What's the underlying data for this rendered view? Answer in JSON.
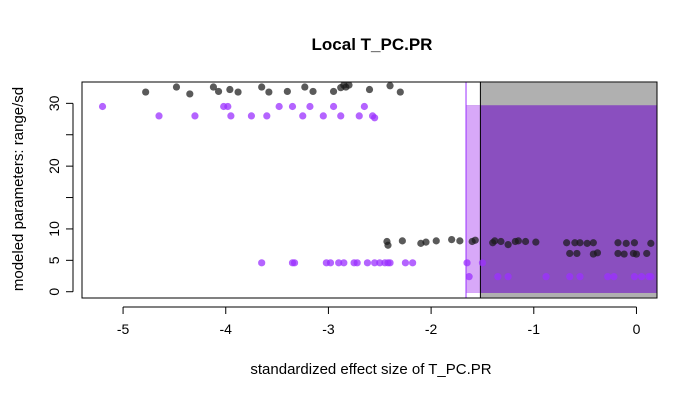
{
  "chart_data": {
    "type": "scatter",
    "title": "Local T_PC.PR",
    "xlabel": "standardized effect size of T_PC.PR",
    "ylabel": "modeled parameters: range/sd",
    "xlim": [
      -5.4,
      0.2
    ],
    "ylim": [
      -1.0,
      33.4
    ],
    "x_ticks": [
      -5,
      -4,
      -3,
      -2,
      -1,
      0
    ],
    "y_ticks": [
      0,
      5,
      10,
      15,
      20,
      25,
      30
    ],
    "y_tick_labels": [
      "0",
      "5",
      "10",
      "",
      "20",
      "",
      "30"
    ],
    "grid": false,
    "colors": {
      "black_points": "#1a1a1a",
      "purple_points": "#9b30ff",
      "gray_band": "#b0b0b0",
      "purple_band": "#8a4fbf",
      "light_purple_band": "#d8a8f8",
      "purple_line": "#9b30ff"
    },
    "bands": [
      {
        "color": "gray",
        "x": [
          -1.52,
          0.2
        ],
        "y": [
          -0.9,
          33.3
        ]
      },
      {
        "color": "purple",
        "x": [
          -1.66,
          0.2
        ],
        "y": [
          -0.2,
          29.7
        ]
      },
      {
        "color": "light-purple",
        "x": [
          -1.66,
          -1.52
        ],
        "y": [
          -0.2,
          29.7
        ]
      }
    ],
    "vlines": [
      {
        "color": "purple",
        "x": -1.66
      },
      {
        "color": "black",
        "x": -1.52
      }
    ],
    "series": [
      {
        "color": "black",
        "points": [
          [
            -4.78,
            31.8
          ],
          [
            -4.48,
            32.6
          ],
          [
            -4.35,
            31.5
          ],
          [
            -4.12,
            32.6
          ],
          [
            -4.07,
            31.9
          ],
          [
            -3.96,
            32.2
          ],
          [
            -3.88,
            31.8
          ],
          [
            -3.65,
            32.6
          ],
          [
            -3.58,
            31.8
          ],
          [
            -3.4,
            31.9
          ],
          [
            -3.23,
            32.6
          ],
          [
            -3.15,
            31.9
          ],
          [
            -2.95,
            31.9
          ],
          [
            -2.88,
            32.5
          ],
          [
            -2.85,
            32.9
          ],
          [
            -2.83,
            32.6
          ],
          [
            -2.8,
            32.9
          ],
          [
            -2.6,
            32.2
          ],
          [
            -2.4,
            32.8
          ],
          [
            -2.3,
            31.8
          ],
          [
            -2.43,
            8.0
          ],
          [
            -2.42,
            7.4
          ],
          [
            -2.28,
            8.1
          ],
          [
            -2.1,
            7.7
          ],
          [
            -2.05,
            7.9
          ],
          [
            -1.95,
            8.1
          ],
          [
            -1.8,
            8.3
          ],
          [
            -1.72,
            8.1
          ],
          [
            -1.6,
            8.0
          ],
          [
            -1.57,
            8.2
          ],
          [
            -1.4,
            7.8
          ],
          [
            -1.38,
            8.1
          ],
          [
            -1.32,
            8.0
          ],
          [
            -1.25,
            7.5
          ],
          [
            -1.18,
            8.0
          ],
          [
            -1.15,
            8.1
          ],
          [
            -1.08,
            8.0
          ],
          [
            -0.98,
            7.9
          ],
          [
            -0.68,
            7.8
          ],
          [
            -0.6,
            7.8
          ],
          [
            -0.55,
            7.8
          ],
          [
            -0.48,
            7.7
          ],
          [
            -0.42,
            7.8
          ],
          [
            -0.18,
            7.8
          ],
          [
            -0.1,
            7.7
          ],
          [
            -0.02,
            7.8
          ],
          [
            0.14,
            7.7
          ],
          [
            -0.65,
            6.1
          ],
          [
            -0.58,
            6.1
          ],
          [
            -0.42,
            6.0
          ],
          [
            -0.38,
            6.2
          ],
          [
            -0.18,
            6.1
          ],
          [
            -0.12,
            6.0
          ],
          [
            -0.03,
            6.1
          ],
          [
            0.0,
            6.0
          ],
          [
            0.1,
            6.1
          ]
        ]
      },
      {
        "color": "purple",
        "points": [
          [
            -5.2,
            29.5
          ],
          [
            -4.65,
            28.0
          ],
          [
            -4.3,
            28.0
          ],
          [
            -4.02,
            29.5
          ],
          [
            -3.98,
            29.5
          ],
          [
            -3.95,
            28.0
          ],
          [
            -3.75,
            28.0
          ],
          [
            -3.6,
            28.0
          ],
          [
            -3.48,
            29.5
          ],
          [
            -3.35,
            29.5
          ],
          [
            -3.25,
            28.0
          ],
          [
            -3.18,
            29.5
          ],
          [
            -3.05,
            28.0
          ],
          [
            -2.95,
            29.5
          ],
          [
            -2.88,
            28.0
          ],
          [
            -2.7,
            28.0
          ],
          [
            -2.65,
            29.5
          ],
          [
            -2.57,
            28.0
          ],
          [
            -2.55,
            27.7
          ],
          [
            -3.65,
            4.6
          ],
          [
            -3.35,
            4.6
          ],
          [
            -3.33,
            4.6
          ],
          [
            -3.02,
            4.6
          ],
          [
            -2.98,
            4.6
          ],
          [
            -2.9,
            4.6
          ],
          [
            -2.85,
            4.6
          ],
          [
            -2.75,
            4.6
          ],
          [
            -2.72,
            4.6
          ],
          [
            -2.62,
            4.6
          ],
          [
            -2.55,
            4.6
          ],
          [
            -2.5,
            4.6
          ],
          [
            -2.45,
            4.6
          ],
          [
            -2.42,
            4.6
          ],
          [
            -2.4,
            4.6
          ],
          [
            -2.25,
            4.6
          ],
          [
            -2.18,
            4.6
          ],
          [
            -1.65,
            4.6
          ],
          [
            -1.5,
            4.6
          ],
          [
            -1.63,
            2.4
          ],
          [
            -1.35,
            2.4
          ],
          [
            -1.25,
            2.4
          ],
          [
            -0.88,
            2.4
          ],
          [
            -0.65,
            2.4
          ],
          [
            -0.55,
            2.4
          ],
          [
            -0.28,
            2.4
          ],
          [
            -0.22,
            2.4
          ],
          [
            -0.02,
            2.4
          ],
          [
            0.05,
            2.4
          ],
          [
            0.12,
            2.4
          ],
          [
            0.14,
            2.4
          ]
        ]
      }
    ]
  }
}
